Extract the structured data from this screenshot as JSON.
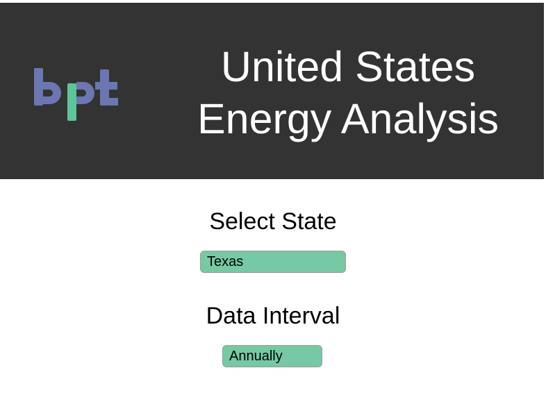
{
  "header": {
    "logo_text": "bpt",
    "title_line1": "United States",
    "title_line2": "Energy Analysis",
    "background": "#333333"
  },
  "state": {
    "label": "Select State",
    "selected": "Texas"
  },
  "interval": {
    "label": "Data Interval",
    "selected": "Annually"
  },
  "colors": {
    "accent_green": "#76c9a3",
    "logo_purple": "#6b76b2",
    "logo_green": "#5fc49a"
  }
}
